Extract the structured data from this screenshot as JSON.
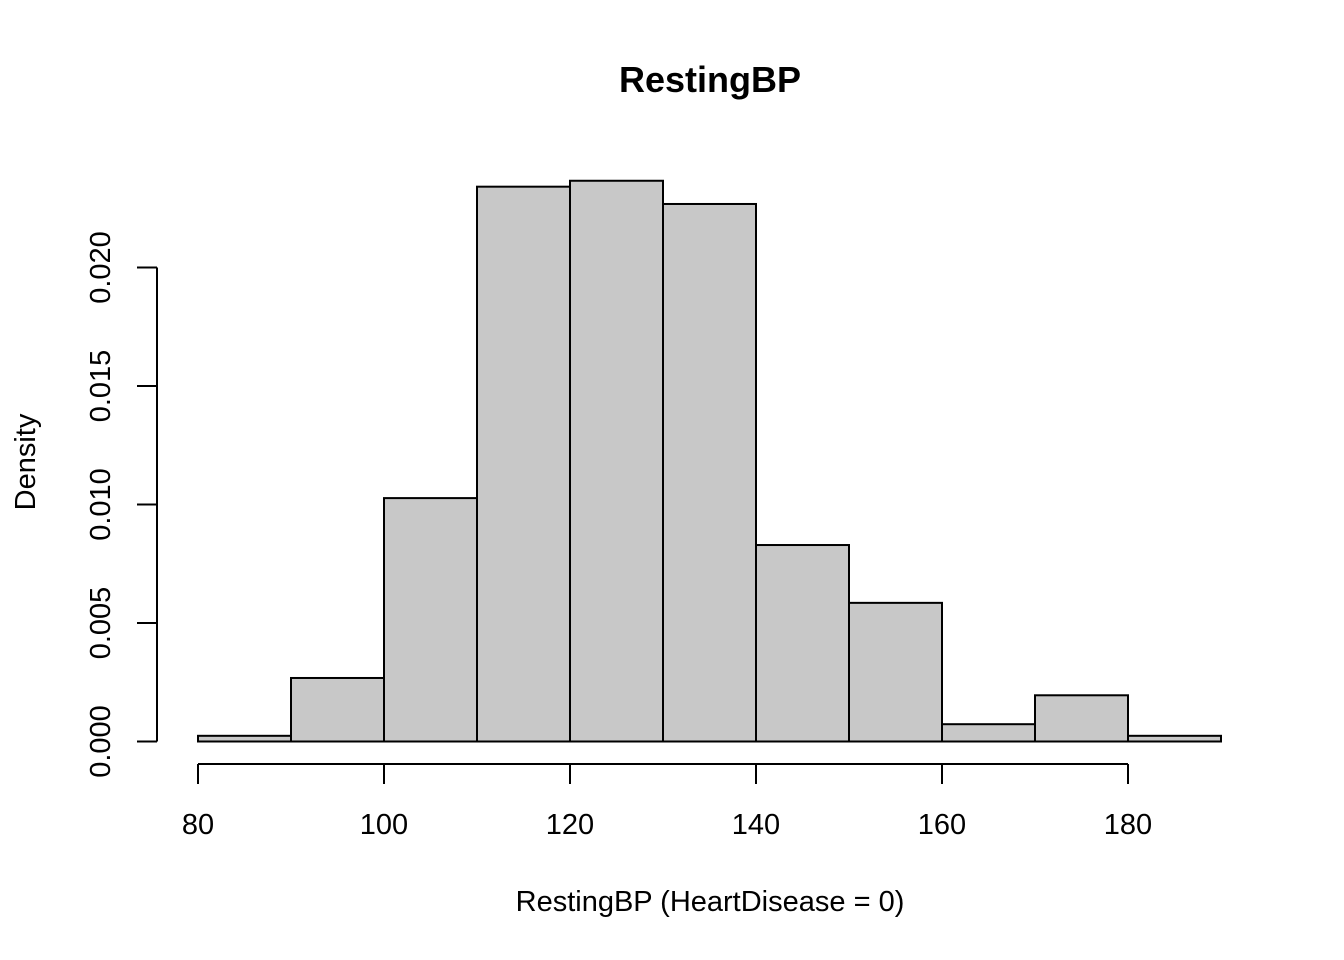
{
  "chart_data": {
    "type": "bar",
    "subtype": "histogram",
    "title": "RestingBP",
    "xlabel": "RestingBP (HeartDisease = 0)",
    "ylabel": "Density",
    "bins": [
      {
        "from": 80,
        "to": 90,
        "density": 0.00024
      },
      {
        "from": 90,
        "to": 100,
        "density": 0.00268
      },
      {
        "from": 100,
        "to": 110,
        "density": 0.01027
      },
      {
        "from": 110,
        "to": 120,
        "density": 0.02341
      },
      {
        "from": 120,
        "to": 130,
        "density": 0.02366
      },
      {
        "from": 130,
        "to": 140,
        "density": 0.02268
      },
      {
        "from": 140,
        "to": 150,
        "density": 0.00829
      },
      {
        "from": 150,
        "to": 160,
        "density": 0.00585
      },
      {
        "from": 160,
        "to": 170,
        "density": 0.00073
      },
      {
        "from": 170,
        "to": 180,
        "density": 0.00195
      },
      {
        "from": 180,
        "to": 190,
        "density": 0.00024
      }
    ],
    "xlim": [
      80,
      190
    ],
    "ylim": [
      0,
      0.025
    ],
    "xticks": [
      80,
      100,
      120,
      140,
      160,
      180
    ],
    "xtick_labels": [
      "80",
      "100",
      "120",
      "140",
      "160",
      "180"
    ],
    "yticks": [
      0,
      0.005,
      0.01,
      0.015,
      0.02
    ],
    "ytick_labels": [
      "0.000",
      "0.005",
      "0.010",
      "0.015",
      "0.020"
    ],
    "bar_color": "#c8c8c8",
    "grid": false,
    "legend": "none"
  }
}
